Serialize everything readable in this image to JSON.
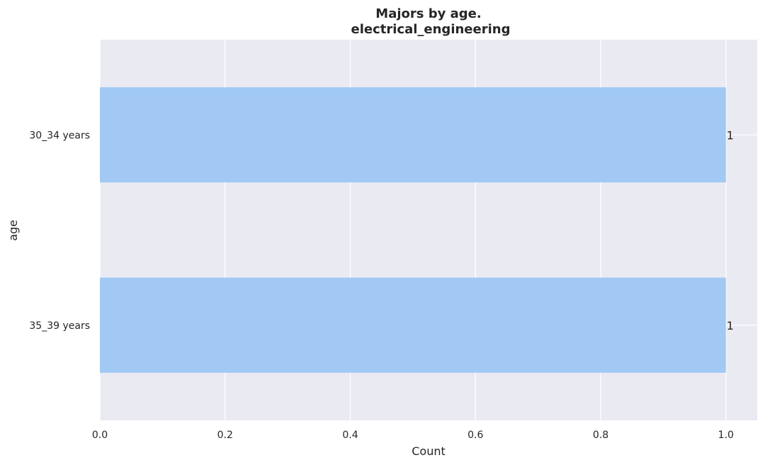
{
  "chart_data": {
    "type": "bar",
    "orientation": "horizontal",
    "title_lines": [
      "Majors by age.",
      "electrical_engineering"
    ],
    "xlabel": "Count",
    "ylabel": "age",
    "categories": [
      "30_34 years",
      "35_39 years"
    ],
    "values": [
      1,
      1
    ],
    "data_labels": [
      "1",
      "1"
    ],
    "xlim": [
      0,
      1.05
    ],
    "xticks": [
      0.0,
      0.2,
      0.4,
      0.6,
      0.8,
      1.0
    ],
    "xtick_labels": [
      "0.0",
      "0.2",
      "0.4",
      "0.6",
      "0.8",
      "1.0"
    ],
    "grid": true,
    "bar_color": "#a1c9f4",
    "background_color": "#eaeaf2",
    "grid_color": "#ffffff"
  }
}
